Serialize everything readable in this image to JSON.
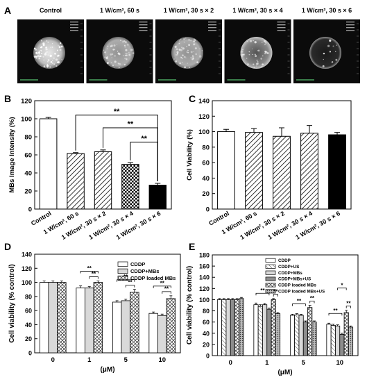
{
  "colors": {
    "ink": "#000000",
    "panel_bg": "#0b0b0b",
    "ultrasound": "#e8e8e8",
    "readout": "#9a9a9a"
  },
  "panel_a": {
    "letter": "A",
    "images": [
      {
        "title": "Control",
        "texture": "dense"
      },
      {
        "title": "1 W/cm², 60 s",
        "texture": "medium"
      },
      {
        "title": "1 W/cm², 30 s × 2",
        "texture": "medium"
      },
      {
        "title": "1 W/cm², 30 s × 4",
        "texture": "sparse"
      },
      {
        "title": "1 W/cm², 30 s × 6",
        "texture": "faint"
      }
    ]
  },
  "chart_data": [
    {
      "panel": "B",
      "type": "bar",
      "ylabel": "MBs Image Intensity (%)",
      "ylim": [
        0,
        120
      ],
      "yticks": [
        0,
        20,
        40,
        60,
        80,
        100,
        120
      ],
      "categories": [
        "Control",
        "1 W/cm², 60 s",
        "1 W/cm², 30 s × 2",
        "1 W/cm², 30 s × 4",
        "1 W/cm², 30 s × 6"
      ],
      "values": [
        100,
        61.5,
        63.5,
        49.5,
        26.5
      ],
      "errors": [
        1.5,
        1,
        2,
        2,
        2
      ],
      "patterns": [
        "white",
        "hatch",
        "hatch",
        "checker",
        "black"
      ],
      "significance": [
        {
          "from": 1,
          "to": 4,
          "label": "**"
        },
        {
          "from": 2,
          "to": 4,
          "label": "**"
        },
        {
          "from": 3,
          "to": 4,
          "label": "**"
        }
      ]
    },
    {
      "panel": "C",
      "type": "bar",
      "ylabel": "Cell Viability (%)",
      "ylim": [
        0,
        140
      ],
      "yticks": [
        0,
        20,
        40,
        60,
        80,
        100,
        120,
        140
      ],
      "categories": [
        "Control",
        "1 W/cm², 60 s",
        "1 W/cm², 30 s × 2",
        "1 W/cm², 30 s × 4",
        "1 W/cm², 30 s × 6"
      ],
      "values": [
        100,
        99,
        94,
        98,
        96
      ],
      "errors": [
        3,
        5,
        11,
        10,
        3
      ],
      "patterns": [
        "white",
        "hatch",
        "hatch",
        "hatch",
        "black"
      ]
    },
    {
      "panel": "D",
      "type": "bar",
      "ylabel": "Cell viability (% control)",
      "xlabel": "(μM)",
      "ylim": [
        0,
        140
      ],
      "yticks": [
        0,
        20,
        40,
        60,
        80,
        100,
        120,
        140
      ],
      "categories": [
        "0",
        "1",
        "5",
        "10"
      ],
      "series": [
        {
          "name": "CDDP",
          "pattern": "white",
          "values": [
            100,
            92,
            72,
            56
          ],
          "errors": [
            2,
            3,
            2,
            2
          ]
        },
        {
          "name": "CDDP+MBs",
          "pattern": "lightgray",
          "values": [
            100,
            92,
            74,
            53
          ],
          "errors": [
            2,
            2,
            2,
            2
          ]
        },
        {
          "name": "CDDP loaded MBs",
          "pattern": "crosshatch",
          "values": [
            100,
            100,
            86,
            77
          ],
          "errors": [
            2,
            2,
            4,
            4
          ]
        }
      ],
      "significance": [
        {
          "group": 1,
          "from": 0,
          "to": 2,
          "label": "**"
        },
        {
          "group": 1,
          "from": 1,
          "to": 2,
          "label": "**"
        },
        {
          "group": 2,
          "from": 0,
          "to": 2,
          "label": "**"
        },
        {
          "group": 2,
          "from": 1,
          "to": 2,
          "label": "**"
        },
        {
          "group": 3,
          "from": 0,
          "to": 2,
          "label": "**"
        },
        {
          "group": 3,
          "from": 1,
          "to": 2,
          "label": "**"
        }
      ]
    },
    {
      "panel": "E",
      "type": "bar",
      "ylabel": "Cell viability (% control)",
      "xlabel": "(μM)",
      "ylim": [
        0,
        180
      ],
      "yticks": [
        0,
        20,
        40,
        60,
        80,
        100,
        120,
        140,
        160,
        180
      ],
      "categories": [
        "0",
        "1",
        "5",
        "10"
      ],
      "series": [
        {
          "name": "CDDP",
          "pattern": "white",
          "values": [
            100,
            91,
            72,
            56
          ],
          "errors": [
            2,
            3,
            2,
            2
          ]
        },
        {
          "name": "CDDP+US",
          "pattern": "diag",
          "values": [
            100,
            88,
            73,
            54
          ],
          "errors": [
            2,
            3,
            2,
            2
          ]
        },
        {
          "name": "CDDP+MBs",
          "pattern": "lightgray",
          "values": [
            100,
            91,
            72,
            53
          ],
          "errors": [
            2,
            2,
            2,
            2
          ]
        },
        {
          "name": "CDDP+MBs+US",
          "pattern": "darkgray",
          "values": [
            100,
            83,
            60,
            38
          ],
          "errors": [
            2,
            2,
            2,
            2
          ]
        },
        {
          "name": "CDDP loaded MBs",
          "pattern": "crosshatch",
          "values": [
            100,
            100,
            86,
            77
          ],
          "errors": [
            2,
            2,
            4,
            4
          ]
        },
        {
          "name": "CDDP loaded MBs+US",
          "pattern": "dots",
          "values": [
            102,
            75,
            60,
            51
          ],
          "errors": [
            2,
            2,
            2,
            2
          ]
        }
      ],
      "significance": [
        {
          "group": 1,
          "from": 0,
          "to": 3,
          "label": "**"
        },
        {
          "group": 1,
          "from": 4,
          "to": 5,
          "label": "**"
        },
        {
          "group": 2,
          "from": 0,
          "to": 3,
          "label": "**"
        },
        {
          "group": 2,
          "from": 4,
          "to": 5,
          "label": "**"
        },
        {
          "group": 3,
          "from": 0,
          "to": 3,
          "label": "**"
        },
        {
          "group": 3,
          "from": 4,
          "to": 5,
          "label": "**"
        },
        {
          "group": 3,
          "from": 2,
          "to": 4,
          "label": "*"
        }
      ]
    }
  ]
}
